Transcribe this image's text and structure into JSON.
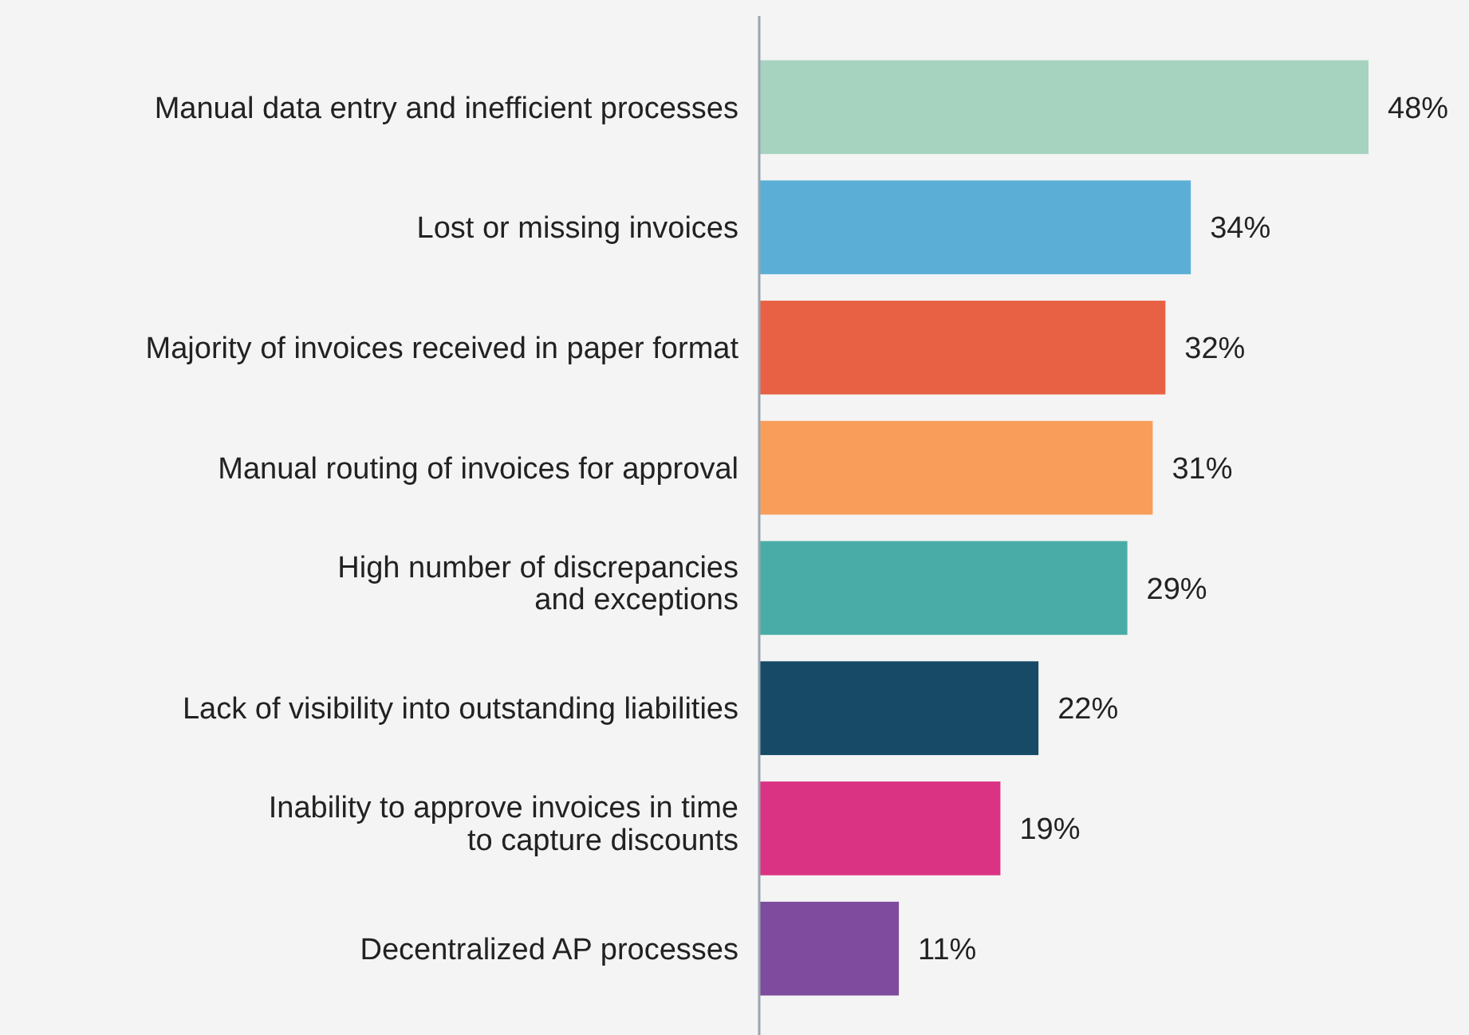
{
  "chart_data": {
    "type": "bar",
    "orientation": "horizontal",
    "data_labels": true,
    "categories": [
      "Manual data entry and inefficient processes",
      "Lost or missing invoices",
      "Majority of invoices received in paper format",
      "Manual routing of invoices for approval",
      "High number of discrepancies\nand exceptions",
      "Lack of visibility into outstanding liabilities",
      "Inability to approve invoices in time\nto capture discounts",
      "Decentralized AP processes"
    ],
    "values": [
      48,
      34,
      32,
      31,
      29,
      22,
      19,
      11
    ],
    "value_labels": [
      "48%",
      "34%",
      "32%",
      "31%",
      "29%",
      "22%",
      "19%",
      "11%"
    ],
    "colors": [
      "#a5d3c0",
      "#5bafd6",
      "#e86144",
      "#f89e5a",
      "#4aaca6",
      "#164a66",
      "#db3384",
      "#7e4b9e"
    ]
  }
}
